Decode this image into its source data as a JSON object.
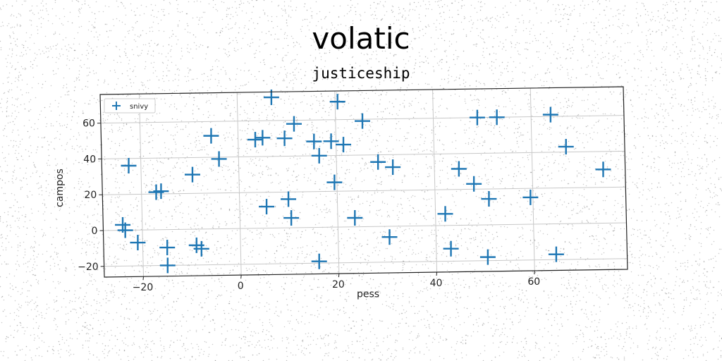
{
  "suptitle": "volatic",
  "chart_data": {
    "type": "scatter",
    "title": "justiceship",
    "xlabel": "pess",
    "ylabel": "campos",
    "xlim": [
      -28,
      79
    ],
    "ylim": [
      -26,
      76
    ],
    "xticks": [
      -20,
      0,
      20,
      40,
      60
    ],
    "yticks": [
      -20,
      0,
      20,
      40,
      60
    ],
    "xtick_labels": [
      "−20",
      "0",
      "20",
      "40",
      "60"
    ],
    "ytick_labels": [
      "−20",
      "0",
      "20",
      "40",
      "60"
    ],
    "grid": true,
    "legend_position": "top-left",
    "marker": "plus",
    "series": [
      {
        "name": "snivy",
        "color": "#1f77b4",
        "points": [
          [
            -22.5,
            36
          ],
          [
            -24,
            3
          ],
          [
            -23.5,
            0
          ],
          [
            -21,
            -7
          ],
          [
            -17,
            21
          ],
          [
            -16,
            21.5
          ],
          [
            -15,
            -10
          ],
          [
            -15,
            -20
          ],
          [
            -9.5,
            30.5
          ],
          [
            -9,
            -9
          ],
          [
            -8,
            -11
          ],
          [
            -5.5,
            52
          ],
          [
            -4,
            39
          ],
          [
            3.5,
            49.5
          ],
          [
            5,
            50.5
          ],
          [
            5.5,
            12
          ],
          [
            9.5,
            50
          ],
          [
            10,
            16
          ],
          [
            10.5,
            5.5
          ],
          [
            11.5,
            58
          ],
          [
            7,
            73
          ],
          [
            15.5,
            48
          ],
          [
            16.5,
            40
          ],
          [
            16,
            -19
          ],
          [
            19,
            48
          ],
          [
            19.5,
            25
          ],
          [
            20.5,
            70
          ],
          [
            21.5,
            46
          ],
          [
            23.5,
            5
          ],
          [
            25.5,
            59
          ],
          [
            28.5,
            36
          ],
          [
            31.5,
            33
          ],
          [
            30.5,
            -6
          ],
          [
            42,
            6.5
          ],
          [
            43,
            -13
          ],
          [
            45,
            31.5
          ],
          [
            48,
            23
          ],
          [
            49,
            60
          ],
          [
            50.5,
            -18
          ],
          [
            51,
            14.5
          ],
          [
            53,
            60
          ],
          [
            59.5,
            15
          ],
          [
            64,
            61
          ],
          [
            64.5,
            -17
          ],
          [
            67,
            43
          ],
          [
            74.5,
            30
          ]
        ]
      }
    ]
  }
}
